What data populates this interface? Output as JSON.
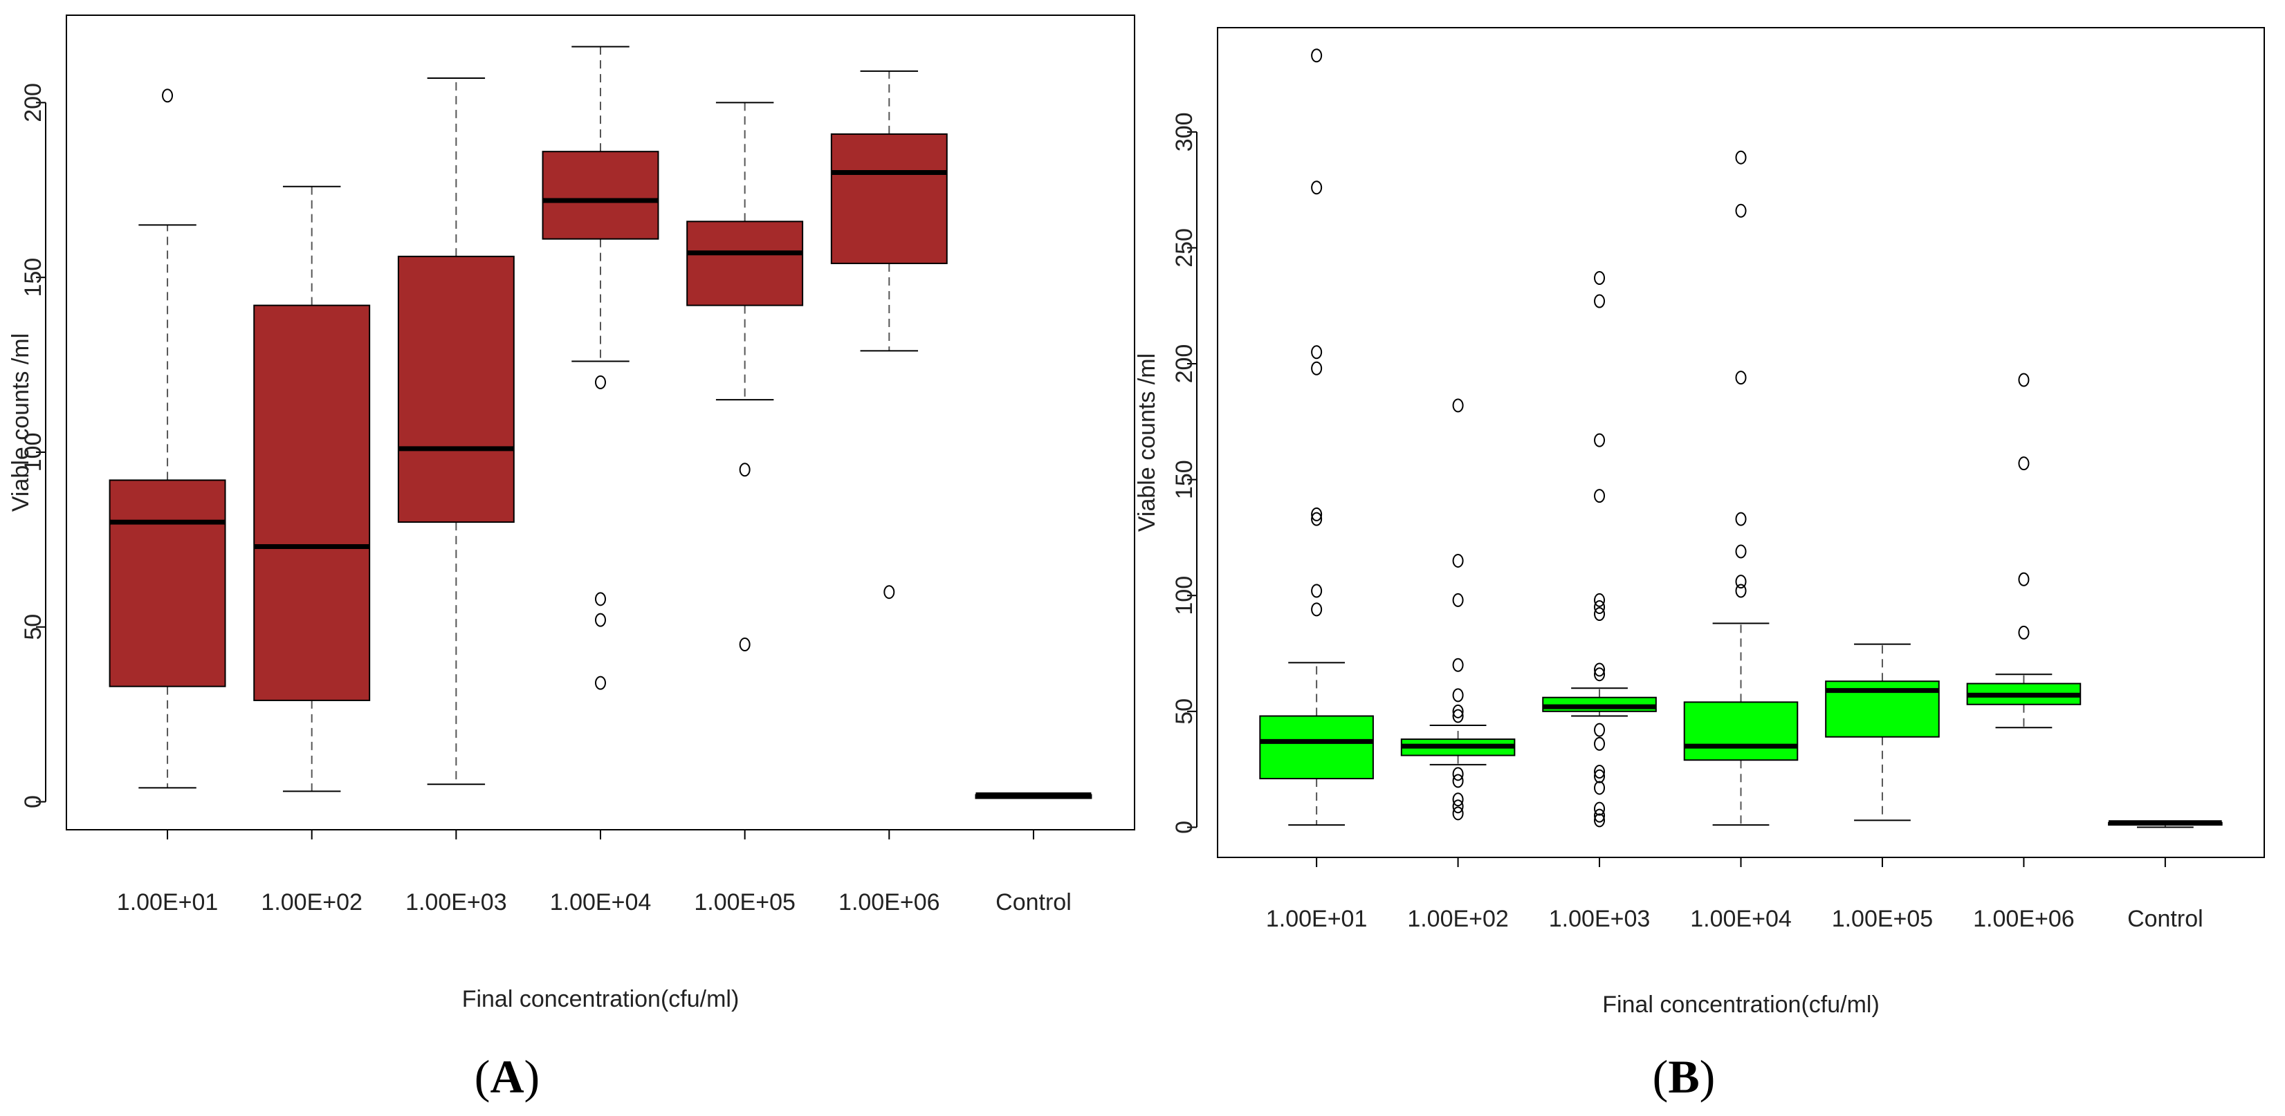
{
  "chart_data": [
    {
      "type": "box",
      "panel_label": "A",
      "panel_open": "(",
      "panel_close": ")",
      "xlabel": "Final concentration(cfu/ml)",
      "ylabel": "Viable counts /ml",
      "ylim": [
        -8,
        225
      ],
      "yticks": [
        0,
        50,
        100,
        150,
        200
      ],
      "box_color": "#a52a2a",
      "categories": [
        "1.00E+01",
        "1.00E+02",
        "1.00E+03",
        "1.00E+04",
        "1.00E+05",
        "1.00E+06",
        "Control"
      ],
      "boxes": [
        {
          "whisker_low": 4,
          "q1": 33,
          "median": 80,
          "q3": 92,
          "whisker_high": 165,
          "outliers": [
            202
          ]
        },
        {
          "whisker_low": 3,
          "q1": 29,
          "median": 73,
          "q3": 142,
          "whisker_high": 176,
          "outliers": []
        },
        {
          "whisker_low": 5,
          "q1": 80,
          "median": 101,
          "q3": 156,
          "whisker_high": 207,
          "outliers": []
        },
        {
          "whisker_low": 126,
          "q1": 161,
          "median": 172,
          "q3": 186,
          "whisker_high": 216,
          "outliers": [
            120,
            58,
            52,
            34
          ]
        },
        {
          "whisker_low": 115,
          "q1": 142,
          "median": 157,
          "q3": 166,
          "whisker_high": 200,
          "outliers": [
            95,
            45
          ]
        },
        {
          "whisker_low": 129,
          "q1": 154,
          "median": 180,
          "q3": 191,
          "whisker_high": 209,
          "outliers": [
            60
          ]
        },
        {
          "whisker_low": 1,
          "q1": 1,
          "median": 2,
          "q3": 2,
          "whisker_high": 2,
          "outliers": []
        }
      ]
    },
    {
      "type": "box",
      "panel_label": "B",
      "panel_open": "(",
      "panel_close": ")",
      "xlabel": "Final concentration(cfu/ml)",
      "ylabel": "Viable counts /ml",
      "ylim": [
        -13,
        345
      ],
      "yticks": [
        0,
        50,
        100,
        150,
        200,
        250,
        300
      ],
      "box_color": "#00ff00",
      "categories": [
        "1.00E+01",
        "1.00E+02",
        "1.00E+03",
        "1.00E+04",
        "1.00E+05",
        "1.00E+06",
        "Control"
      ],
      "boxes": [
        {
          "whisker_low": 1,
          "q1": 21,
          "median": 37,
          "q3": 48,
          "whisker_high": 71,
          "outliers": [
            333,
            276,
            205,
            198,
            135,
            133,
            102,
            94
          ]
        },
        {
          "whisker_low": 27,
          "q1": 31,
          "median": 35,
          "q3": 38,
          "whisker_high": 44,
          "outliers": [
            182,
            115,
            98,
            70,
            57,
            50,
            48,
            23,
            20,
            12,
            9,
            6
          ]
        },
        {
          "whisker_low": 48,
          "q1": 50,
          "median": 52,
          "q3": 56,
          "whisker_high": 60,
          "outliers": [
            237,
            227,
            167,
            143,
            98,
            95,
            92,
            68,
            66,
            42,
            36,
            24,
            22,
            17,
            8,
            5,
            3
          ]
        },
        {
          "whisker_low": 1,
          "q1": 29,
          "median": 35,
          "q3": 54,
          "whisker_high": 88,
          "outliers": [
            289,
            266,
            194,
            133,
            119,
            106,
            102
          ]
        },
        {
          "whisker_low": 3,
          "q1": 39,
          "median": 59,
          "q3": 63,
          "whisker_high": 79,
          "outliers": []
        },
        {
          "whisker_low": 43,
          "q1": 53,
          "median": 57,
          "q3": 62,
          "whisker_high": 66,
          "outliers": [
            193,
            157,
            107,
            84
          ]
        },
        {
          "whisker_low": 0,
          "q1": 1,
          "median": 2,
          "q3": 2,
          "whisker_high": 2,
          "outliers": []
        }
      ]
    }
  ]
}
